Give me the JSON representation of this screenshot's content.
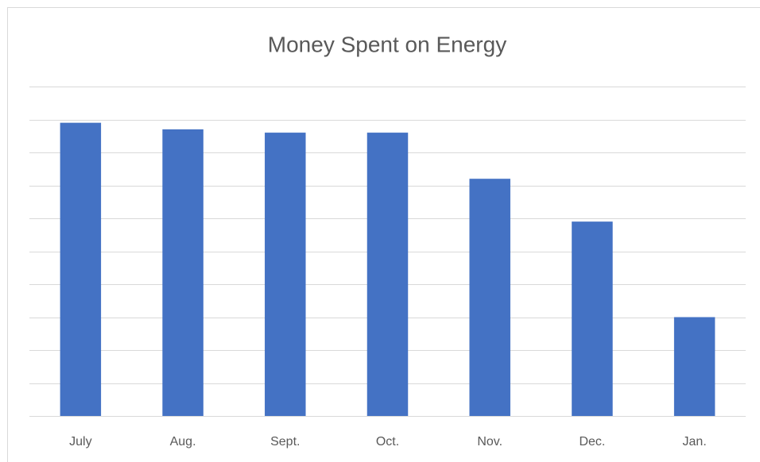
{
  "chart_data": {
    "type": "bar",
    "title": "Money Spent on Energy",
    "categories": [
      "July",
      "Aug.",
      "Sept.",
      "Oct.",
      "Nov.",
      "Dec.",
      "Jan."
    ],
    "values": [
      8.9,
      8.7,
      8.6,
      8.6,
      7.2,
      5.9,
      3.0
    ],
    "color": "#4472c4",
    "ylim": [
      0,
      10
    ],
    "yticks": [
      0,
      1,
      2,
      3,
      4,
      5,
      6,
      7,
      8,
      9,
      10
    ],
    "grid": true
  }
}
